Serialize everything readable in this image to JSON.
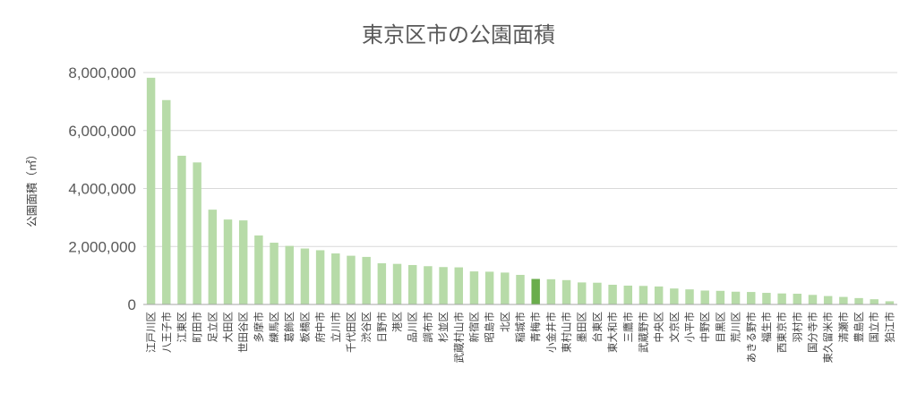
{
  "chart_data": {
    "type": "bar",
    "title": "東京区市の公園面積",
    "ylabel": "公園面積（㎡）",
    "xlabel": "",
    "ylim": [
      0,
      8000000
    ],
    "yticks": [
      "0",
      "2,000,000",
      "4,000,000",
      "6,000,000",
      "8,000,000"
    ],
    "grid": true,
    "colors": {
      "bar": "#b7dba8",
      "highlight": "#6aad4c",
      "grid": "#d9d9d9",
      "axis": "#a6a6a6"
    },
    "highlight_category": "青梅市",
    "categories": [
      "江戸川区",
      "八王子市",
      "江東区",
      "町田市",
      "足立区",
      "大田区",
      "世田谷区",
      "多摩市",
      "練馬区",
      "葛飾区",
      "板橋区",
      "府中市",
      "立川市",
      "千代田区",
      "渋谷区",
      "日野市",
      "港区",
      "品川区",
      "調布市",
      "杉並区",
      "武蔵村山市",
      "新宿区",
      "昭島市",
      "北区",
      "稲城市",
      "青梅市",
      "小金井市",
      "東村山市",
      "墨田区",
      "台東区",
      "東大和市",
      "三鷹市",
      "武蔵野市",
      "中央区",
      "文京区",
      "小平市",
      "中野区",
      "目黒区",
      "荒川区",
      "あきる野市",
      "福生市",
      "西東京市",
      "羽村市",
      "国分寺市",
      "東久留米市",
      "清瀬市",
      "豊島区",
      "国立市",
      "狛江市"
    ],
    "values": [
      7820000,
      7050000,
      5130000,
      4900000,
      3270000,
      2930000,
      2900000,
      2380000,
      2130000,
      2020000,
      1930000,
      1870000,
      1760000,
      1680000,
      1640000,
      1420000,
      1400000,
      1360000,
      1320000,
      1290000,
      1280000,
      1140000,
      1130000,
      1100000,
      1020000,
      880000,
      870000,
      840000,
      760000,
      750000,
      680000,
      650000,
      640000,
      620000,
      550000,
      520000,
      480000,
      470000,
      440000,
      430000,
      400000,
      380000,
      370000,
      330000,
      290000,
      260000,
      220000,
      180000,
      110000
    ]
  }
}
